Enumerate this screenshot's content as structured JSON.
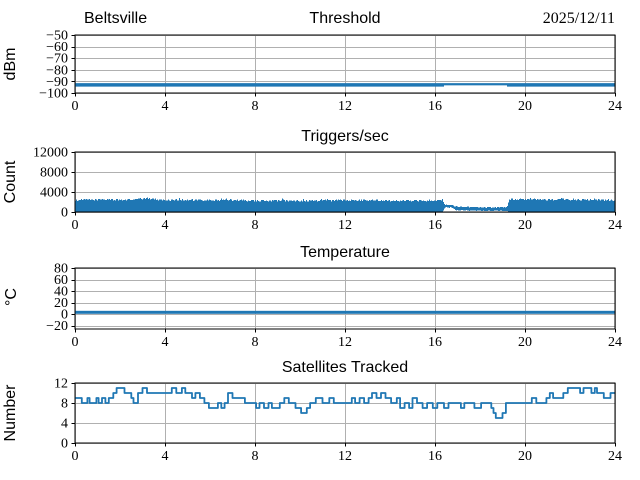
{
  "figure": {
    "background": "#ffffff",
    "accent_color": "#1f77b4",
    "grid_color": "#b0b0b0",
    "axis_color": "#000000"
  },
  "chart_data": [
    {
      "type": "line",
      "corner_left": "Beltsville",
      "title": "Threshold",
      "corner_right": "2025/12/11",
      "ylabel": "dBm",
      "xlim": [
        0,
        24
      ],
      "ylim": [
        -100,
        -50
      ],
      "xticks": [
        0,
        4,
        8,
        12,
        16,
        20,
        24
      ],
      "yticks": [
        -50,
        -60,
        -70,
        -80,
        -90,
        -100
      ],
      "grid": true,
      "series": {
        "name": "threshold-dbm",
        "value": -93,
        "spread": 1.5,
        "quiet_window": [
          16.4,
          19.2
        ],
        "quiet_spread": 0.4
      }
    },
    {
      "type": "noisy_band",
      "title": "Triggers/sec",
      "ylabel": "Count",
      "xlim": [
        0,
        24
      ],
      "ylim": [
        0,
        12000
      ],
      "xticks": [
        0,
        4,
        8,
        12,
        16,
        20,
        24
      ],
      "yticks": [
        12000,
        8000,
        4000,
        0
      ],
      "grid": true,
      "seed": 1234,
      "noise_amplitude": 180,
      "envelope": {
        "x": [
          0,
          0.5,
          1,
          1.5,
          2,
          2.5,
          3,
          3.3,
          3.6,
          4,
          4.5,
          5,
          6,
          7,
          8,
          9,
          10,
          11,
          12,
          13,
          14,
          15,
          16,
          16.35,
          16.45,
          16.75,
          16.9,
          17.5,
          18.5,
          19.1,
          19.2,
          19.3,
          20,
          21,
          22,
          23,
          24
        ],
        "top": [
          2350,
          2500,
          2450,
          2550,
          2400,
          2500,
          2650,
          2750,
          2550,
          2350,
          2450,
          2400,
          2350,
          2400,
          2250,
          2300,
          2250,
          2300,
          2350,
          2400,
          2300,
          2250,
          2300,
          2250,
          1450,
          1400,
          1100,
          1000,
          900,
          950,
          950,
          2550,
          2500,
          2450,
          2500,
          2450,
          2350
        ],
        "bottom": [
          0,
          0,
          0,
          0,
          0,
          0,
          0,
          0,
          0,
          0,
          0,
          0,
          0,
          0,
          0,
          0,
          0,
          0,
          0,
          0,
          0,
          0,
          0,
          0,
          950,
          900,
          400,
          300,
          200,
          250,
          250,
          0,
          0,
          0,
          0,
          0,
          0
        ]
      }
    },
    {
      "type": "line",
      "title": "Temperature",
      "ylabel": "°C",
      "xlim": [
        0,
        24
      ],
      "ylim": [
        -26,
        80
      ],
      "xticks": [
        0,
        4,
        8,
        12,
        16,
        20,
        24
      ],
      "yticks": [
        80,
        60,
        40,
        20,
        0,
        -20
      ],
      "grid": true,
      "series": {
        "name": "temperature-c",
        "value": 3,
        "spread": 2.6
      }
    },
    {
      "type": "step",
      "title": "Satellites Tracked",
      "ylabel": "Number",
      "xlim": [
        0,
        24
      ],
      "ylim": [
        0,
        12
      ],
      "xticks": [
        0,
        4,
        8,
        12,
        16,
        20,
        24
      ],
      "yticks": [
        12,
        8,
        4,
        0
      ],
      "grid": true,
      "points": [
        [
          0,
          9
        ],
        [
          0.3,
          8
        ],
        [
          0.55,
          9
        ],
        [
          0.65,
          8
        ],
        [
          0.95,
          9
        ],
        [
          1.05,
          8
        ],
        [
          1.2,
          9
        ],
        [
          1.35,
          8
        ],
        [
          1.5,
          9
        ],
        [
          1.7,
          10
        ],
        [
          1.85,
          11
        ],
        [
          2.2,
          10
        ],
        [
          2.5,
          9
        ],
        [
          2.6,
          8
        ],
        [
          2.8,
          10
        ],
        [
          3.0,
          11
        ],
        [
          3.2,
          10
        ],
        [
          4.3,
          11
        ],
        [
          4.5,
          10
        ],
        [
          4.75,
          11
        ],
        [
          4.9,
          10
        ],
        [
          5.2,
          9
        ],
        [
          5.35,
          10
        ],
        [
          5.55,
          9
        ],
        [
          5.75,
          8
        ],
        [
          5.95,
          7
        ],
        [
          6.35,
          8
        ],
        [
          6.5,
          7
        ],
        [
          6.65,
          8
        ],
        [
          6.8,
          10
        ],
        [
          7.0,
          9
        ],
        [
          7.55,
          8
        ],
        [
          8.05,
          7
        ],
        [
          8.2,
          8
        ],
        [
          8.4,
          7
        ],
        [
          8.6,
          8
        ],
        [
          8.75,
          7
        ],
        [
          9.1,
          8
        ],
        [
          9.3,
          9
        ],
        [
          9.5,
          8
        ],
        [
          9.8,
          7
        ],
        [
          10.05,
          6
        ],
        [
          10.3,
          7
        ],
        [
          10.45,
          8
        ],
        [
          10.7,
          9
        ],
        [
          11.0,
          8
        ],
        [
          11.3,
          9
        ],
        [
          11.5,
          8
        ],
        [
          12.3,
          9
        ],
        [
          12.45,
          8
        ],
        [
          12.65,
          9
        ],
        [
          12.85,
          8
        ],
        [
          13.05,
          9
        ],
        [
          13.2,
          10
        ],
        [
          13.4,
          9
        ],
        [
          13.6,
          10
        ],
        [
          13.8,
          9
        ],
        [
          14.05,
          8
        ],
        [
          14.3,
          9
        ],
        [
          14.45,
          7
        ],
        [
          14.65,
          8
        ],
        [
          14.85,
          7
        ],
        [
          15.0,
          9
        ],
        [
          15.2,
          8
        ],
        [
          15.45,
          7
        ],
        [
          15.65,
          8
        ],
        [
          15.9,
          7
        ],
        [
          16.1,
          8
        ],
        [
          16.4,
          7
        ],
        [
          16.6,
          8
        ],
        [
          17.15,
          7
        ],
        [
          17.3,
          8
        ],
        [
          17.75,
          7
        ],
        [
          18.05,
          8
        ],
        [
          18.5,
          7
        ],
        [
          18.6,
          6
        ],
        [
          18.7,
          5
        ],
        [
          19.0,
          6
        ],
        [
          19.15,
          8
        ],
        [
          20.3,
          9
        ],
        [
          20.5,
          8
        ],
        [
          20.95,
          9
        ],
        [
          21.1,
          10
        ],
        [
          21.25,
          9
        ],
        [
          21.7,
          10
        ],
        [
          21.9,
          11
        ],
        [
          22.45,
          10
        ],
        [
          22.6,
          11
        ],
        [
          22.95,
          10
        ],
        [
          23.1,
          11
        ],
        [
          23.2,
          10
        ],
        [
          23.5,
          9
        ],
        [
          23.8,
          10
        ],
        [
          24,
          10
        ]
      ]
    }
  ]
}
